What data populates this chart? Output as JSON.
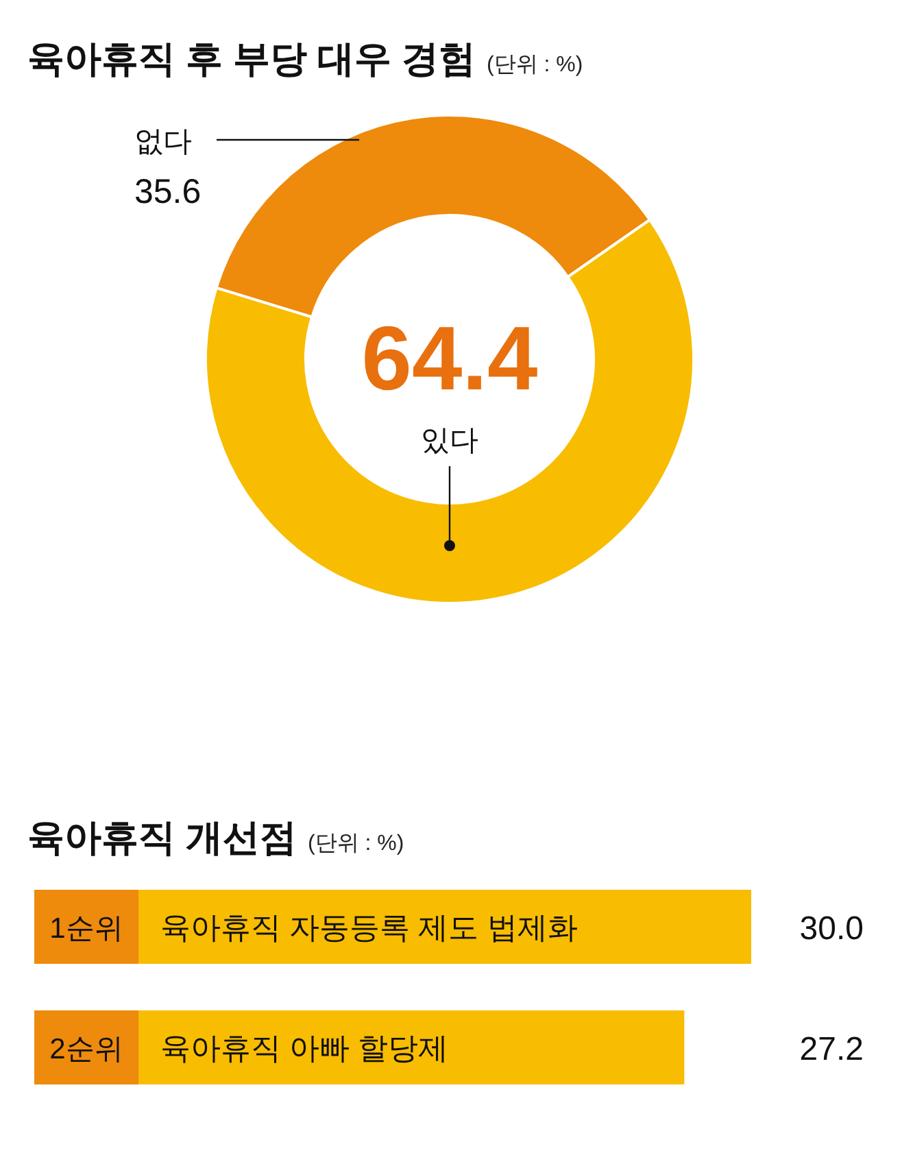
{
  "chart_data": [
    {
      "type": "donut",
      "title": "육아휴직 후 부당 대우 경험",
      "subtitle": "(단위 : %)",
      "categories": [
        "없다",
        "있다"
      ],
      "values": [
        35.6,
        64.4
      ],
      "colors": [
        "#ee8a0c",
        "#f8bc00"
      ],
      "data_labels": true
    },
    {
      "type": "bar",
      "orientation": "horizontal",
      "title": "육아휴직 개선점",
      "subtitle": "(단위 : %)",
      "categories": [
        "육아휴직 자동등록 제도 법제화",
        "육아휴직 아빠 할당제"
      ],
      "series": [
        {
          "color": "#f8bc00",
          "values": [
            30.0,
            27.2
          ],
          "value_labels": [
            "30.0",
            "27.2"
          ]
        }
      ],
      "annotations": [
        "1순위",
        "2순위"
      ]
    }
  ]
}
